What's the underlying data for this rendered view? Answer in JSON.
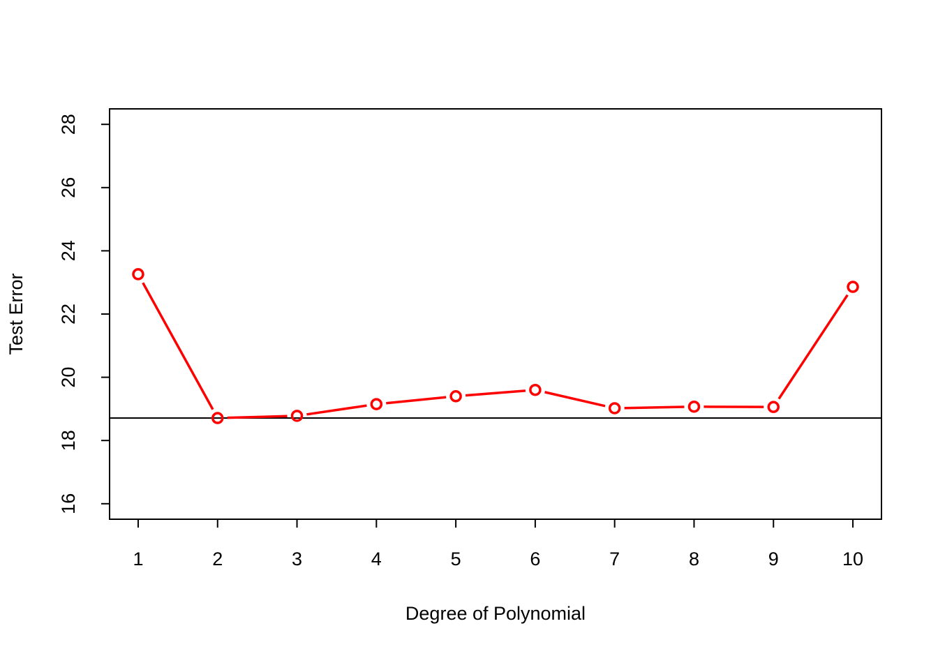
{
  "chart_data": {
    "type": "line",
    "xlabel": "Degree of Polynomial",
    "ylabel": "Test Error",
    "x": [
      1,
      2,
      3,
      4,
      5,
      6,
      7,
      8,
      9,
      10
    ],
    "series": [
      {
        "color": "#ff0000",
        "values": [
          23.26,
          18.71,
          18.78,
          19.15,
          19.4,
          19.6,
          19.02,
          19.07,
          19.06,
          22.86
        ]
      }
    ],
    "hline": {
      "value": 18.71,
      "color": "#000000"
    },
    "xlim": [
      0.64,
      10.36
    ],
    "xticks": [
      1,
      2,
      3,
      4,
      5,
      6,
      7,
      8,
      9,
      10
    ],
    "ylim": [
      15.51,
      28.49
    ],
    "yticks": [
      16,
      18,
      20,
      22,
      24,
      26,
      28
    ]
  }
}
